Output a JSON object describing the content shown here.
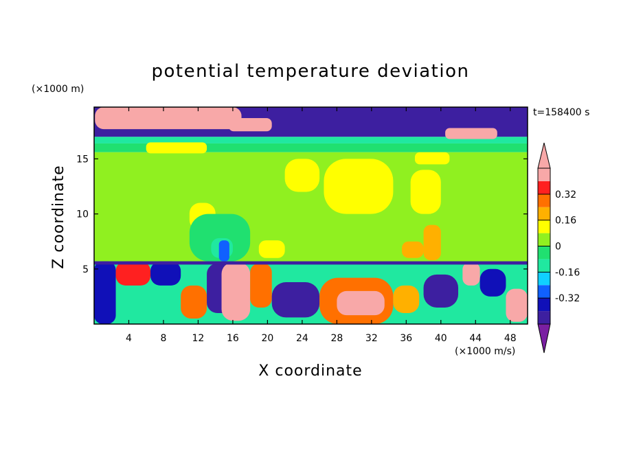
{
  "chart_data": {
    "type": "heatmap",
    "title": "potential temperature deviation",
    "xlabel": "X coordinate",
    "ylabel": "Z coordinate",
    "x_unit": "(×1000 m/s)",
    "y_unit": "(×1000 m)",
    "time_label": "t=158400 s",
    "xlim": [
      0,
      50
    ],
    "ylim": [
      0,
      19.7
    ],
    "x_ticks": [
      4,
      8,
      12,
      16,
      20,
      24,
      28,
      32,
      36,
      40,
      44,
      48
    ],
    "y_ticks": [
      5,
      10,
      15
    ],
    "colorbar": {
      "levels": [
        -0.48,
        -0.4,
        -0.32,
        -0.24,
        -0.16,
        -0.08,
        0,
        0.08,
        0.16,
        0.24,
        0.32,
        0.4,
        0.48
      ],
      "tick_labels": [
        "-0.32",
        "-0.16",
        "0",
        "0.16",
        "0.32"
      ],
      "tick_values": [
        -0.32,
        -0.16,
        0,
        0.16,
        0.32
      ],
      "extend": "both",
      "colors": [
        "#7a1fa2",
        "#3d1fa0",
        "#1010b8",
        "#1060ff",
        "#10d0ff",
        "#20e8a0",
        "#20e070",
        "#90f020",
        "#ffff00",
        "#ffb000",
        "#ff7000",
        "#ff2020",
        "#f8a8a8"
      ]
    },
    "regions": [
      {
        "x0": 0,
        "x1": 50,
        "y0": 17.0,
        "y1": 19.7,
        "value": -0.42
      },
      {
        "x0": 0,
        "x1": 50,
        "y0": 16.4,
        "y1": 17.0,
        "value": -0.1
      },
      {
        "x0": 0,
        "x1": 50,
        "y0": 15.6,
        "y1": 16.4,
        "value": -0.02
      },
      {
        "x0": 0,
        "x1": 50,
        "y0": 5.7,
        "y1": 15.6,
        "value": 0.03
      },
      {
        "x0": 0,
        "x1": 50,
        "y0": 0,
        "y1": 5.7,
        "value": -0.1
      },
      {
        "x0": 0.1,
        "x1": 17,
        "y0": 17.7,
        "y1": 19.7,
        "value": 0.45
      },
      {
        "x0": 15.5,
        "x1": 20.5,
        "y0": 17.5,
        "y1": 18.7,
        "value": 0.4
      },
      {
        "x0": 40.5,
        "x1": 46.5,
        "y0": 16.8,
        "y1": 17.8,
        "value": 0.45
      },
      {
        "x0": 6,
        "x1": 13,
        "y0": 15.5,
        "y1": 16.5,
        "value": 0.1
      },
      {
        "x0": 37,
        "x1": 41,
        "y0": 14.5,
        "y1": 15.6,
        "value": 0.1
      },
      {
        "x0": 11,
        "x1": 14,
        "y0": 8.5,
        "y1": 11.0,
        "value": 0.1
      },
      {
        "x0": 22,
        "x1": 26,
        "y0": 12.0,
        "y1": 15.0,
        "value": 0.1
      },
      {
        "x0": 26.5,
        "x1": 34.5,
        "y0": 10.0,
        "y1": 15.0,
        "value": 0.1
      },
      {
        "x0": 36.5,
        "x1": 40,
        "y0": 10.0,
        "y1": 14.0,
        "value": 0.1
      },
      {
        "x0": 38,
        "x1": 40,
        "y0": 5.8,
        "y1": 9.0,
        "value": 0.2
      },
      {
        "x0": 35.5,
        "x1": 38,
        "y0": 6.0,
        "y1": 7.5,
        "value": 0.2
      },
      {
        "x0": 11,
        "x1": 18,
        "y0": 5.7,
        "y1": 10.0,
        "value": -0.05
      },
      {
        "x0": 13.5,
        "x1": 16,
        "y0": 6.0,
        "y1": 7.8,
        "value": -0.15
      },
      {
        "x0": 14.4,
        "x1": 15.6,
        "y0": 5.7,
        "y1": 7.6,
        "value": -0.3
      },
      {
        "x0": 19,
        "x1": 22,
        "y0": 6.0,
        "y1": 7.6,
        "value": 0.1
      },
      {
        "x0": 0,
        "x1": 2.5,
        "y0": 0,
        "y1": 5.7,
        "value": -0.35
      },
      {
        "x0": 2.5,
        "x1": 6.5,
        "y0": 3.5,
        "y1": 5.7,
        "value": 0.35
      },
      {
        "x0": 6.5,
        "x1": 10,
        "y0": 3.5,
        "y1": 5.7,
        "value": -0.4
      },
      {
        "x0": 10,
        "x1": 13,
        "y0": 0.5,
        "y1": 3.5,
        "value": 0.25
      },
      {
        "x0": 13,
        "x1": 16,
        "y0": 1.0,
        "y1": 5.5,
        "value": -0.42
      },
      {
        "x0": 14.7,
        "x1": 18.0,
        "y0": 0.3,
        "y1": 5.6,
        "value": 0.45
      },
      {
        "x0": 18,
        "x1": 20.5,
        "y0": 1.5,
        "y1": 5.5,
        "value": 0.3
      },
      {
        "x0": 20.5,
        "x1": 26,
        "y0": 0.6,
        "y1": 3.8,
        "value": -0.42
      },
      {
        "x0": 26,
        "x1": 34.5,
        "y0": 0,
        "y1": 4.2,
        "value": 0.3
      },
      {
        "x0": 28,
        "x1": 33.5,
        "y0": 0.8,
        "y1": 3.0,
        "value": 0.45
      },
      {
        "x0": 34.5,
        "x1": 37.5,
        "y0": 1.0,
        "y1": 3.5,
        "value": 0.2
      },
      {
        "x0": 38,
        "x1": 42,
        "y0": 1.5,
        "y1": 4.5,
        "value": -0.42
      },
      {
        "x0": 42.5,
        "x1": 44.5,
        "y0": 3.5,
        "y1": 5.6,
        "value": 0.45
      },
      {
        "x0": 44.5,
        "x1": 47.5,
        "y0": 2.5,
        "y1": 5.0,
        "value": -0.35
      },
      {
        "x0": 47.5,
        "x1": 50,
        "y0": 0.2,
        "y1": 3.2,
        "value": 0.4
      },
      {
        "x0": 0,
        "x1": 50,
        "y0": 5.4,
        "y1": 5.7,
        "value": -0.42
      }
    ]
  }
}
